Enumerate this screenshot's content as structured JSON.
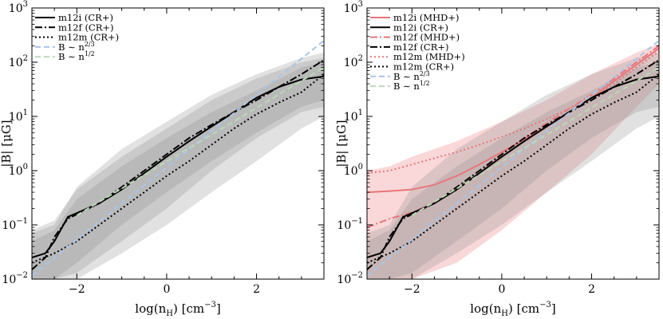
{
  "chart_data": [
    {
      "type": "line",
      "panel": "left",
      "xlabel": "log(n",
      "xlabel_sub": "H",
      "xlabel_unit": ") [cm",
      "xlabel_exp": "−3",
      "xlabel_end": "]",
      "ylabel": "|B| [μG]",
      "xlim": [
        -3,
        3.5
      ],
      "ylim_log10": [
        -2,
        3
      ],
      "x_ticks": [
        -2,
        0,
        2
      ],
      "x_tick_labels": [
        "−2",
        "0",
        "2"
      ],
      "y_ticks_log10": [
        -2,
        -1,
        0,
        1,
        2,
        3
      ],
      "y_tick_base": "10",
      "y_tick_exps": [
        "−2",
        "−1",
        "0",
        "1",
        "2",
        "3"
      ],
      "legend_position": "top-left",
      "legend": [
        {
          "label": "m12i (CR+)",
          "color": "#000000",
          "dash": "solid"
        },
        {
          "label": "m12f (CR+)",
          "color": "#000000",
          "dash": "dashdot"
        },
        {
          "label": "m12m (CR+)",
          "color": "#000000",
          "dash": "dotted"
        },
        {
          "label": "B ∼ n",
          "sup": "2/3",
          "color": "#a9c4ea",
          "dash": "dashed"
        },
        {
          "label": "B ∼ n",
          "sup": "1/2",
          "color": "#b9d9b5",
          "dash": "dashed"
        }
      ],
      "bands": [
        {
          "name": "m12i (CR+) range",
          "color": "#888888",
          "opacity": 0.25,
          "x": [
            -3,
            -2.5,
            -2,
            -1,
            0,
            1,
            2,
            3,
            3.5
          ],
          "low": [
            0.01,
            0.01,
            0.013,
            0.05,
            0.2,
            1.0,
            4,
            12,
            15
          ],
          "high": [
            0.07,
            0.1,
            0.5,
            2.5,
            8,
            25,
            60,
            120,
            150
          ]
        },
        {
          "name": "m12f (CR+) range",
          "color": "#888888",
          "opacity": 0.25,
          "x": [
            -3,
            -2.5,
            -2,
            -1,
            0,
            1,
            2,
            3,
            3.5
          ],
          "low": [
            0.01,
            0.01,
            0.02,
            0.1,
            0.4,
            1.5,
            5,
            15,
            20
          ],
          "high": [
            0.08,
            0.12,
            0.45,
            1.8,
            6,
            20,
            50,
            100,
            120
          ]
        },
        {
          "name": "m12m (CR+) range",
          "color": "#888888",
          "opacity": 0.25,
          "x": [
            -3,
            -2.5,
            -2,
            -1,
            0,
            1,
            2,
            3,
            3.5
          ],
          "low": [
            0.01,
            0.01,
            0.01,
            0.03,
            0.1,
            0.4,
            1.5,
            6,
            10
          ],
          "high": [
            0.05,
            0.08,
            0.3,
            1.2,
            4,
            12,
            30,
            80,
            100
          ]
        }
      ],
      "series": [
        {
          "name": "m12i (CR+)",
          "color": "#000000",
          "dash": "solid",
          "width": 2,
          "x": [
            -3,
            -2.7,
            -2.5,
            -2.2,
            -1.5,
            -1,
            -0.5,
            0,
            0.5,
            1,
            1.5,
            2,
            2.5,
            3,
            3.5
          ],
          "y": [
            0.025,
            0.03,
            0.05,
            0.14,
            0.25,
            0.45,
            0.9,
            1.8,
            3.5,
            6.5,
            12,
            22,
            35,
            48,
            55
          ]
        },
        {
          "name": "m12f (CR+)",
          "color": "#000000",
          "dash": "dashdot",
          "width": 2,
          "x": [
            -3,
            -2.7,
            -2.5,
            -2.2,
            -1.5,
            -1,
            -0.5,
            0,
            0.5,
            1,
            1.5,
            2,
            2.5,
            3,
            3.5
          ],
          "y": [
            0.015,
            0.025,
            0.06,
            0.13,
            0.25,
            0.5,
            1.0,
            2.0,
            4.0,
            7.0,
            12,
            20,
            35,
            60,
            110
          ]
        },
        {
          "name": "m12m (CR+)",
          "color": "#000000",
          "dash": "dotted",
          "width": 2,
          "x": [
            -3,
            -2.5,
            -2,
            -1.5,
            -1,
            -0.5,
            0,
            0.5,
            1,
            1.5,
            2,
            2.5,
            3,
            3.5
          ],
          "y": [
            0.02,
            0.03,
            0.05,
            0.1,
            0.2,
            0.4,
            0.8,
            1.5,
            3.0,
            6.0,
            11,
            18,
            28,
            60
          ]
        },
        {
          "name": "B ∼ n^(2/3)",
          "color": "#a9c4ea",
          "dash": "dashed",
          "width": 2,
          "x": [
            -3,
            3.5
          ],
          "y": [
            0.0115,
            250
          ]
        },
        {
          "name": "B ∼ n^(1/2)",
          "color": "#b9d9b5",
          "dash": "dashed",
          "width": 2,
          "x": [
            -2,
            3.5
          ],
          "y": [
            0.15,
            80
          ]
        }
      ]
    },
    {
      "type": "line",
      "panel": "right",
      "xlabel": "log(n",
      "xlabel_sub": "H",
      "xlabel_unit": ") [cm",
      "xlabel_exp": "−3",
      "xlabel_end": "]",
      "ylabel": "|B| [μG]",
      "xlim": [
        -3,
        3.5
      ],
      "ylim_log10": [
        -2,
        3
      ],
      "x_ticks": [
        -2,
        0,
        2
      ],
      "x_tick_labels": [
        "−2",
        "0",
        "2"
      ],
      "y_ticks_log10": [
        -2,
        -1,
        0,
        1,
        2,
        3
      ],
      "y_tick_base": "10",
      "y_tick_exps": [
        "−2",
        "−1",
        "0",
        "1",
        "2",
        "3"
      ],
      "legend_position": "top-left",
      "legend": [
        {
          "label": "m12i (MHD+)",
          "color": "#e8767a",
          "dash": "solid"
        },
        {
          "label": "m12i (CR+)",
          "color": "#000000",
          "dash": "solid"
        },
        {
          "label": "m12f (MHD+)",
          "color": "#e8767a",
          "dash": "dashdot"
        },
        {
          "label": "m12f (CR+)",
          "color": "#000000",
          "dash": "dashdot"
        },
        {
          "label": "m12m (MHD+)",
          "color": "#e8767a",
          "dash": "dotted"
        },
        {
          "label": "m12m (CR+)",
          "color": "#000000",
          "dash": "dotted"
        },
        {
          "label": "B ∼ n",
          "sup": "2/3",
          "color": "#a9c4ea",
          "dash": "dashed"
        },
        {
          "label": "B ∼ n",
          "sup": "1/2",
          "color": "#b9d9b5",
          "dash": "dashed"
        }
      ],
      "bands": [
        {
          "name": "MHD+ range",
          "color": "#ef7f82",
          "opacity": 0.3,
          "x": [
            -3,
            -2.5,
            -2,
            -1,
            0,
            1,
            2,
            3,
            3.5
          ],
          "low": [
            0.01,
            0.01,
            0.01,
            0.02,
            0.08,
            0.4,
            2,
            15,
            40
          ],
          "high": [
            1.0,
            1.2,
            1.8,
            3.5,
            8,
            20,
            60,
            150,
            220
          ]
        },
        {
          "name": "CR+ range A",
          "color": "#888888",
          "opacity": 0.25,
          "x": [
            -3,
            -2.5,
            -2,
            -1,
            0,
            1,
            2,
            3,
            3.5
          ],
          "low": [
            0.01,
            0.01,
            0.013,
            0.05,
            0.2,
            1.0,
            4,
            12,
            15
          ],
          "high": [
            0.07,
            0.1,
            0.5,
            2.5,
            8,
            25,
            60,
            120,
            150
          ]
        },
        {
          "name": "CR+ range B",
          "color": "#888888",
          "opacity": 0.25,
          "x": [
            -3,
            -2.5,
            -2,
            -1,
            0,
            1,
            2,
            3,
            3.5
          ],
          "low": [
            0.01,
            0.01,
            0.01,
            0.03,
            0.1,
            0.4,
            1.5,
            6,
            10
          ],
          "high": [
            0.05,
            0.08,
            0.3,
            1.2,
            4,
            12,
            30,
            80,
            100
          ]
        }
      ],
      "series": [
        {
          "name": "m12i (MHD+)",
          "color": "#e8767a",
          "dash": "solid",
          "width": 2,
          "x": [
            -3,
            -2.5,
            -2,
            -1.5,
            -1,
            -0.5,
            0,
            0.5,
            1,
            1.5,
            2,
            2.5,
            3,
            3.5
          ],
          "y": [
            0.4,
            0.42,
            0.45,
            0.55,
            0.8,
            1.3,
            2.2,
            3.8,
            6.5,
            12,
            22,
            45,
            90,
            180
          ]
        },
        {
          "name": "m12f (MHD+)",
          "color": "#e8767a",
          "dash": "dashdot",
          "width": 2,
          "x": [
            -3,
            -2.5,
            -2,
            -1.5,
            -1,
            -0.5,
            0,
            0.5,
            1,
            1.5,
            2,
            2.5,
            3,
            3.5
          ],
          "y": [
            0.09,
            0.13,
            0.17,
            0.25,
            0.45,
            0.9,
            2.0,
            4.0,
            7.5,
            14,
            25,
            50,
            100,
            200
          ]
        },
        {
          "name": "m12m (MHD+)",
          "color": "#e8767a",
          "dash": "dotted",
          "width": 2,
          "x": [
            -3,
            -2.5,
            -2,
            -1.5,
            -1,
            -0.5,
            0,
            0.5,
            1,
            1.5,
            2,
            2.5,
            3,
            3.5
          ],
          "y": [
            0.9,
            1.0,
            1.3,
            1.7,
            2.2,
            3.0,
            4.2,
            6.0,
            9,
            14,
            22,
            40,
            80,
            160
          ]
        },
        {
          "name": "m12i (CR+)",
          "color": "#000000",
          "dash": "solid",
          "width": 2,
          "x": [
            -3,
            -2.7,
            -2.5,
            -2.2,
            -1.5,
            -1,
            -0.5,
            0,
            0.5,
            1,
            1.5,
            2,
            2.5,
            3,
            3.5
          ],
          "y": [
            0.025,
            0.03,
            0.05,
            0.14,
            0.25,
            0.45,
            0.9,
            1.8,
            3.5,
            6.5,
            12,
            22,
            35,
            48,
            55
          ]
        },
        {
          "name": "m12f (CR+)",
          "color": "#000000",
          "dash": "dashdot",
          "width": 2,
          "x": [
            -3,
            -2.7,
            -2.5,
            -2.2,
            -1.5,
            -1,
            -0.5,
            0,
            0.5,
            1,
            1.5,
            2,
            2.5,
            3,
            3.5
          ],
          "y": [
            0.015,
            0.025,
            0.06,
            0.13,
            0.25,
            0.5,
            1.0,
            2.0,
            4.0,
            7.0,
            12,
            20,
            35,
            60,
            110
          ]
        },
        {
          "name": "m12m (CR+)",
          "color": "#000000",
          "dash": "dotted",
          "width": 2,
          "x": [
            -3,
            -2.5,
            -2,
            -1.5,
            -1,
            -0.5,
            0,
            0.5,
            1,
            1.5,
            2,
            2.5,
            3,
            3.5
          ],
          "y": [
            0.02,
            0.03,
            0.05,
            0.1,
            0.2,
            0.4,
            0.8,
            1.5,
            3.0,
            6.0,
            11,
            18,
            28,
            60
          ]
        },
        {
          "name": "B ∼ n^(2/3)",
          "color": "#a9c4ea",
          "dash": "dashed",
          "width": 2,
          "x": [
            -3,
            3.5
          ],
          "y": [
            0.0115,
            250
          ]
        },
        {
          "name": "B ∼ n^(1/2)",
          "color": "#b9d9b5",
          "dash": "dashed",
          "width": 2,
          "x": [
            -2,
            3.5
          ],
          "y": [
            0.15,
            80
          ]
        }
      ]
    }
  ]
}
